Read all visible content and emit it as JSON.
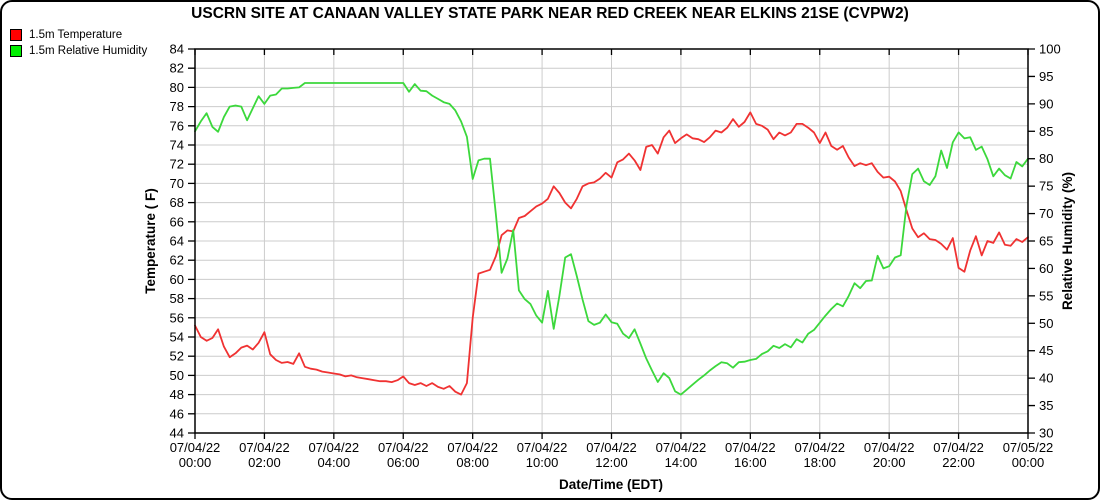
{
  "title": "USCRN SITE AT CANAAN VALLEY STATE PARK NEAR RED CREEK NEAR ELKINS 21SE (CVPW2)",
  "legend": {
    "items": [
      {
        "label": "1.5m Temperature",
        "swatch_color": "#ff0000"
      },
      {
        "label": "1.5m Relative Humidity",
        "swatch_color": "#00ee00"
      }
    ]
  },
  "chart_data": {
    "type": "line",
    "title": "USCRN SITE AT CANAAN VALLEY STATE PARK NEAR RED CREEK NEAR ELKINS 21SE (CVPW2)",
    "xlabel": "Date/Time (EDT)",
    "ylabel_left": "Temperature ( F)",
    "ylabel_right": "Relative Humidity (%)",
    "grid": true,
    "legend_position": "top-left",
    "grid_color": "#cccccc",
    "x_start_hour": 0,
    "x_end_hour": 24,
    "x_step_minutes": 10,
    "x_tick_interval_hours": 2,
    "x_tick_labels": [
      [
        "07/04/22",
        "00:00"
      ],
      [
        "07/04/22",
        "02:00"
      ],
      [
        "07/04/22",
        "04:00"
      ],
      [
        "07/04/22",
        "06:00"
      ],
      [
        "07/04/22",
        "08:00"
      ],
      [
        "07/04/22",
        "10:00"
      ],
      [
        "07/04/22",
        "12:00"
      ],
      [
        "07/04/22",
        "14:00"
      ],
      [
        "07/04/22",
        "16:00"
      ],
      [
        "07/04/22",
        "18:00"
      ],
      [
        "07/04/22",
        "20:00"
      ],
      [
        "07/04/22",
        "22:00"
      ],
      [
        "07/05/22",
        "00:00"
      ]
    ],
    "y_left": {
      "min": 44,
      "max": 84,
      "step": 2
    },
    "y_right": {
      "min": 30,
      "max": 100,
      "step": 5
    },
    "series": [
      {
        "name": "1.5m Temperature",
        "axis": "left",
        "color": "#f03232",
        "values": [
          55.2,
          54.0,
          53.6,
          53.9,
          54.8,
          53.0,
          51.9,
          52.3,
          52.9,
          53.1,
          52.7,
          53.4,
          54.5,
          52.2,
          51.6,
          51.3,
          51.4,
          51.2,
          52.3,
          50.9,
          50.7,
          50.6,
          50.4,
          50.3,
          50.2,
          50.1,
          49.9,
          50.0,
          49.8,
          49.7,
          49.6,
          49.5,
          49.4,
          49.4,
          49.3,
          49.5,
          49.9,
          49.2,
          49.0,
          49.2,
          48.9,
          49.2,
          48.8,
          48.6,
          48.9,
          48.3,
          48.0,
          49.2,
          56.0,
          60.6,
          60.8,
          61.0,
          62.4,
          64.6,
          65.1,
          65.0,
          66.4,
          66.6,
          67.1,
          67.6,
          67.9,
          68.4,
          69.7,
          69.0,
          68.0,
          67.4,
          68.4,
          69.7,
          70.0,
          70.1,
          70.5,
          71.1,
          70.6,
          72.2,
          72.5,
          73.1,
          72.4,
          71.4,
          73.8,
          74.0,
          73.1,
          74.8,
          75.5,
          74.2,
          74.7,
          75.1,
          74.7,
          74.6,
          74.3,
          74.8,
          75.5,
          75.3,
          75.8,
          76.7,
          75.9,
          76.4,
          77.4,
          76.2,
          76.0,
          75.6,
          74.6,
          75.3,
          75.0,
          75.3,
          76.2,
          76.2,
          75.8,
          75.3,
          74.2,
          75.3,
          73.9,
          73.5,
          73.9,
          72.7,
          71.8,
          72.1,
          71.9,
          72.1,
          71.2,
          70.6,
          70.7,
          70.2,
          69.2,
          67.2,
          65.3,
          64.4,
          64.8,
          64.2,
          64.1,
          63.7,
          63.1,
          64.3,
          61.2,
          60.8,
          63.0,
          64.5,
          62.5,
          64.0,
          63.8,
          64.9,
          63.6,
          63.5,
          64.2,
          63.9,
          64.4
        ]
      },
      {
        "name": "1.5m Relative Humidity",
        "axis": "right",
        "color": "#3cd83c",
        "values": [
          85.0,
          86.8,
          88.3,
          85.8,
          84.9,
          87.6,
          89.5,
          89.7,
          89.5,
          87.0,
          89.2,
          91.4,
          90.0,
          91.5,
          91.7,
          92.8,
          92.8,
          92.9,
          93.0,
          93.8,
          93.8,
          93.8,
          93.8,
          93.8,
          93.8,
          93.8,
          93.8,
          93.8,
          93.8,
          93.8,
          93.8,
          93.8,
          93.8,
          93.8,
          93.8,
          93.8,
          93.8,
          92.2,
          93.6,
          92.4,
          92.3,
          91.5,
          90.9,
          90.3,
          90.0,
          88.8,
          86.8,
          84.0,
          76.3,
          79.7,
          80.0,
          80.0,
          70.0,
          59.2,
          61.8,
          67.0,
          56.0,
          54.4,
          53.5,
          51.4,
          50.1,
          55.9,
          49.0,
          55.0,
          62.0,
          62.6,
          58.6,
          54.3,
          50.4,
          49.7,
          50.1,
          51.6,
          50.2,
          49.9,
          48.1,
          47.3,
          48.9,
          46.3,
          43.6,
          41.4,
          39.3,
          40.9,
          40.0,
          37.6,
          37.0,
          37.9,
          38.8,
          39.7,
          40.5,
          41.4,
          42.2,
          42.9,
          42.7,
          41.9,
          42.9,
          43.0,
          43.3,
          43.5,
          44.4,
          44.9,
          45.9,
          45.5,
          46.2,
          45.6,
          47.1,
          46.5,
          48.1,
          48.8,
          50.1,
          51.4,
          52.6,
          53.6,
          53.1,
          55.0,
          57.3,
          56.4,
          57.7,
          57.8,
          62.3,
          60.0,
          60.4,
          62.0,
          62.4,
          71.5,
          77.2,
          78.2,
          75.9,
          75.2,
          76.8,
          81.5,
          78.3,
          83.0,
          84.8,
          83.7,
          83.9,
          81.6,
          82.2,
          79.9,
          76.8,
          78.2,
          77.0,
          76.4,
          79.4,
          78.6,
          80.0
        ]
      }
    ]
  }
}
